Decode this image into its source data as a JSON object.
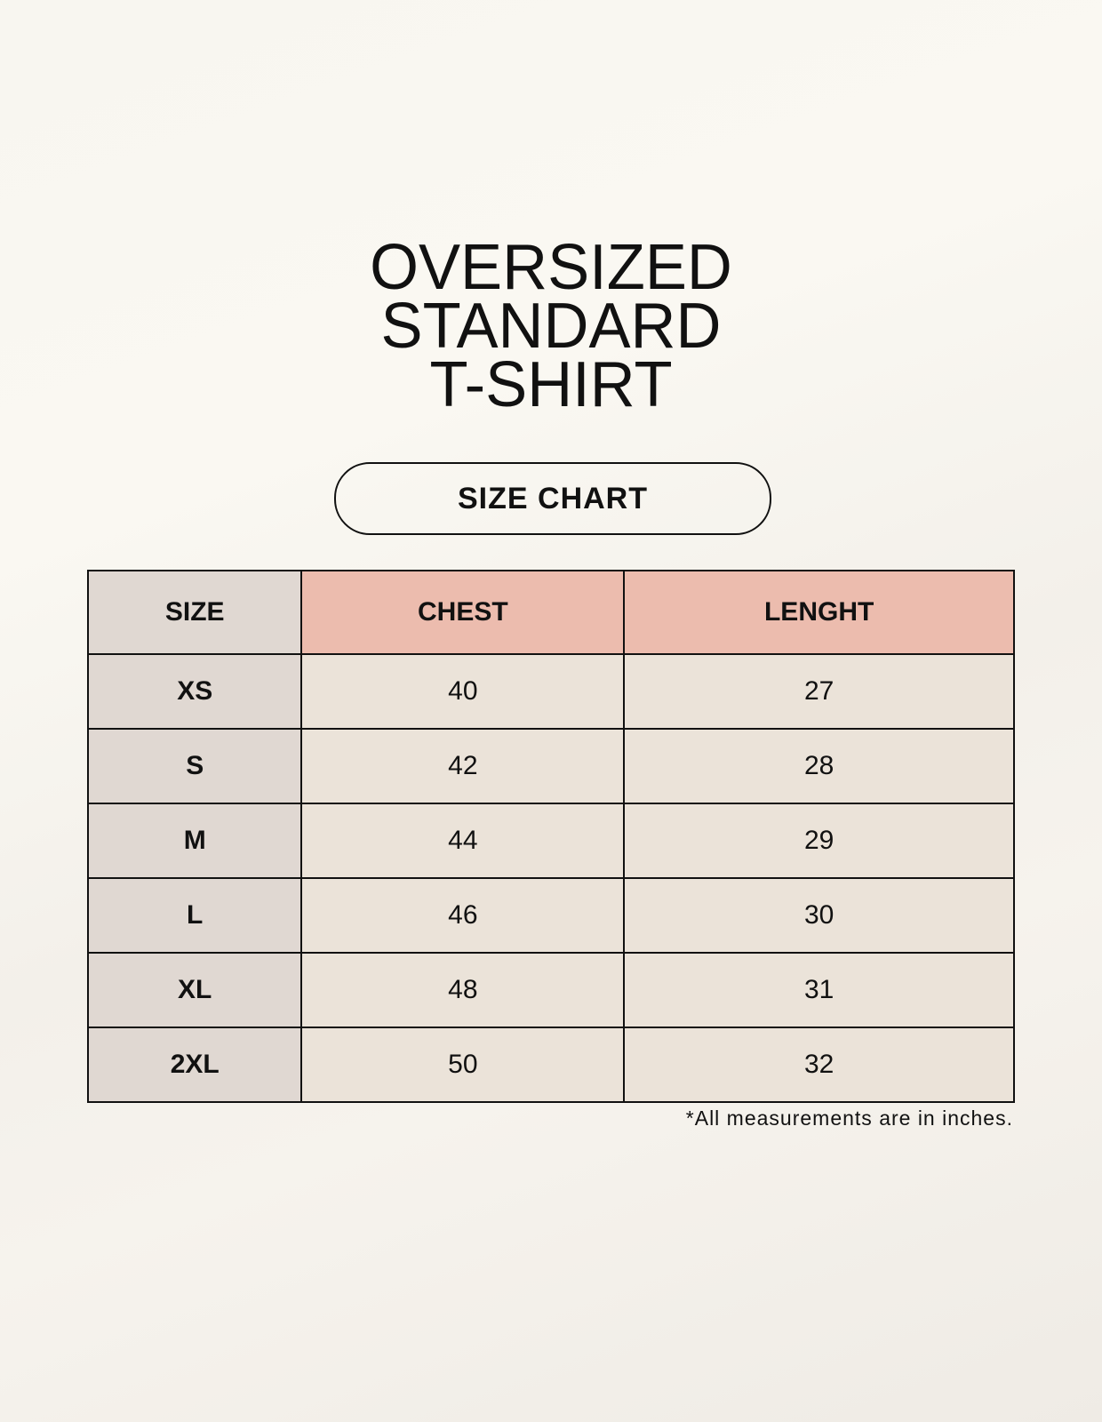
{
  "title": {
    "lines": [
      "OVERSIZED",
      "STANDARD",
      "T-SHIRT"
    ]
  },
  "badge": "SIZE CHART",
  "table": {
    "headers": [
      "SIZE",
      "CHEST",
      "LENGHT"
    ],
    "rows": [
      [
        "XS",
        "40",
        "27"
      ],
      [
        "S",
        "42",
        "28"
      ],
      [
        "M",
        "44",
        "29"
      ],
      [
        "L",
        "46",
        "30"
      ],
      [
        "XL",
        "48",
        "31"
      ],
      [
        "2XL",
        "50",
        "32"
      ]
    ]
  },
  "footnote": "*All measurements are in inches.",
  "colors": {
    "size_column": "#e0d8d2",
    "measure_header": "#ecbcae",
    "cell": "#ebe3d9"
  }
}
